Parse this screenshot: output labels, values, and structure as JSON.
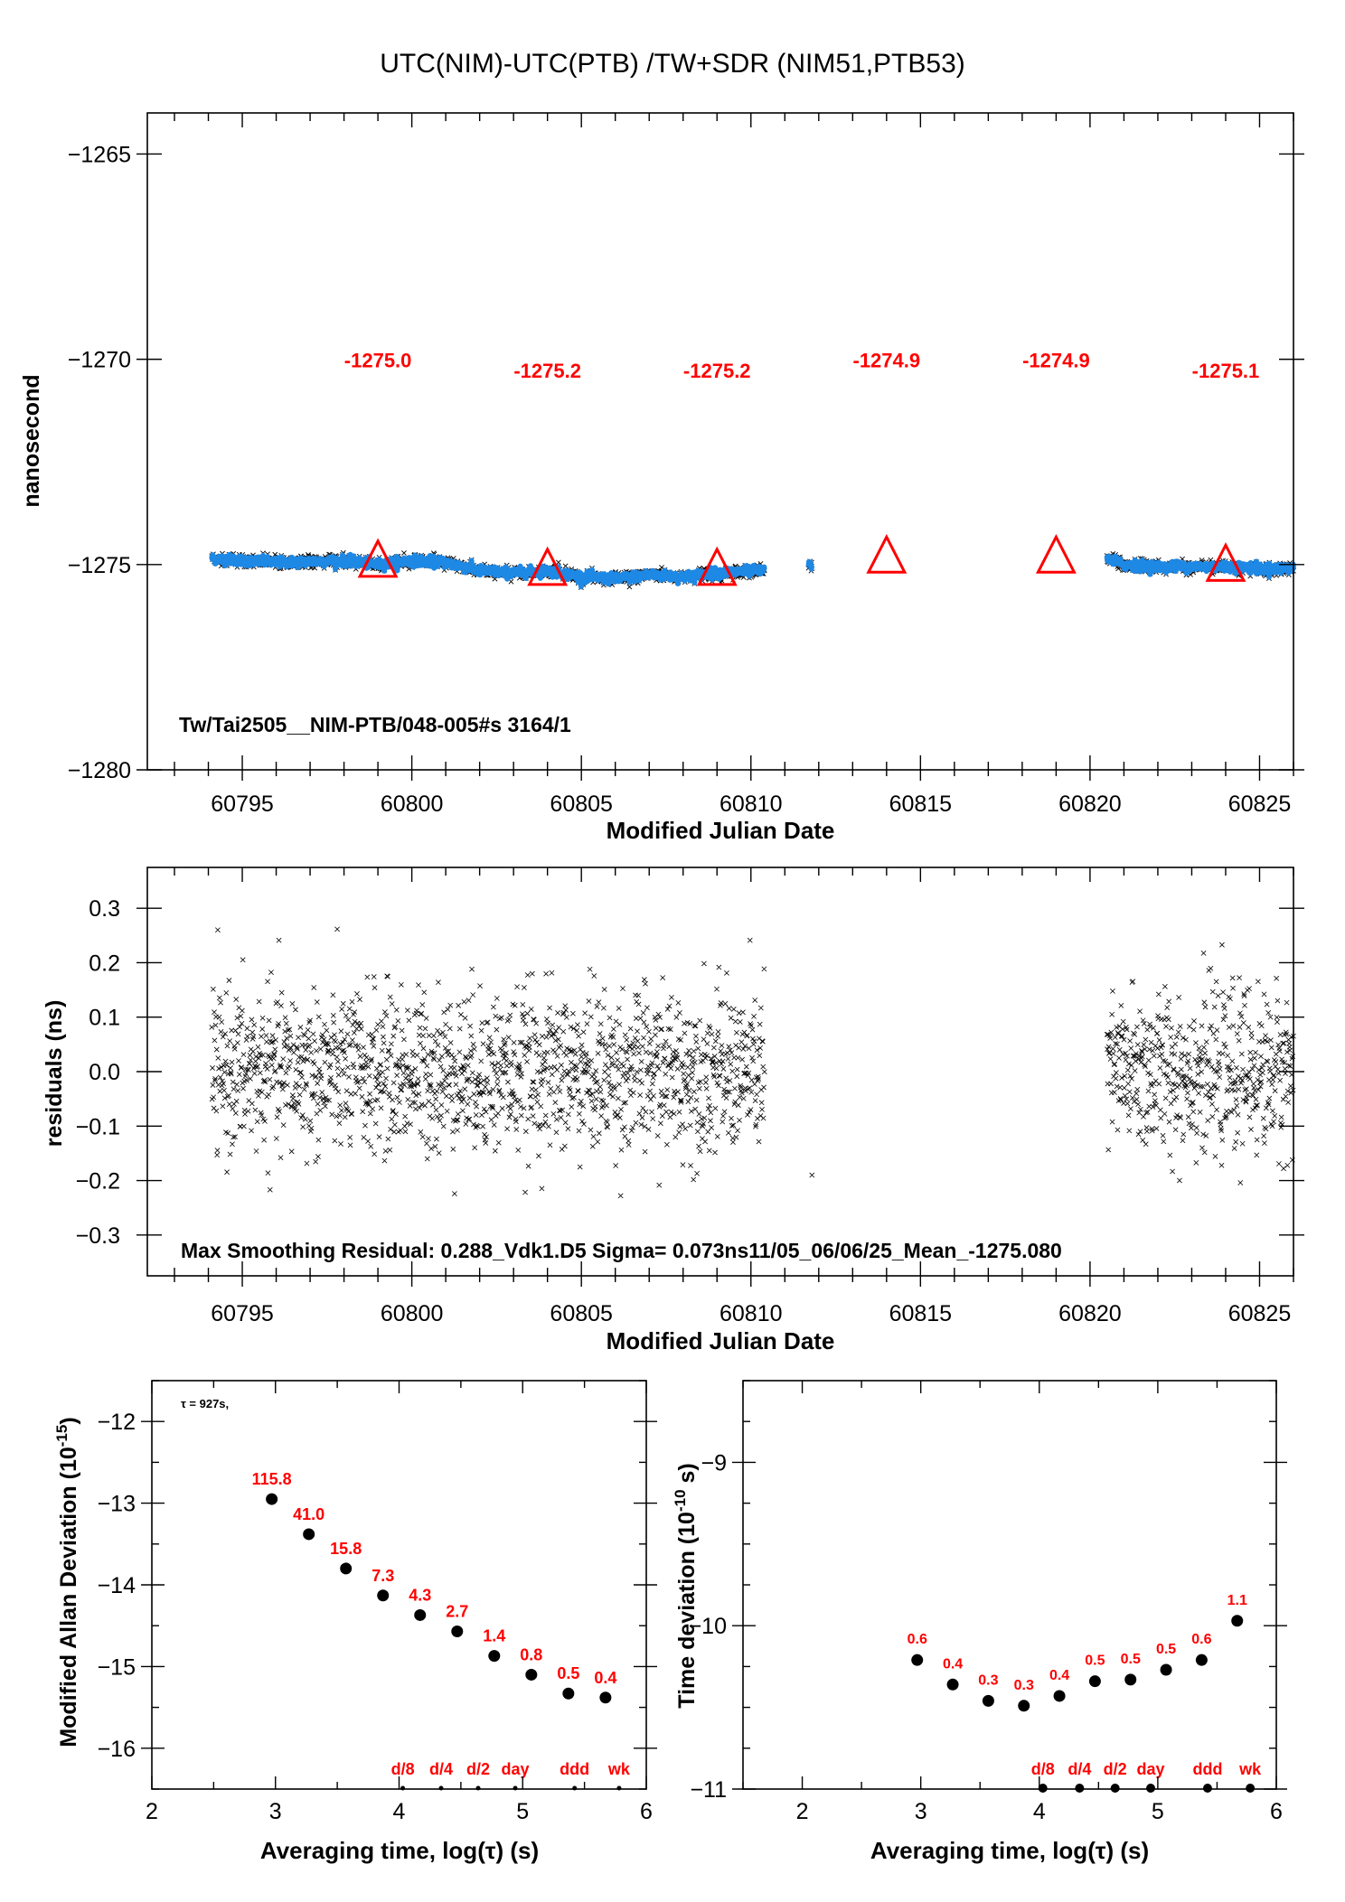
{
  "title": "UTC(NIM)-UTC(PTB)  /TW+SDR  (NIM51,PTB53)",
  "chart_data": [
    {
      "type": "scatter",
      "id": "offset",
      "xlabel": "Modified Julian Date",
      "ylabel": "nanosecond",
      "xlim": [
        60792.2,
        60826
      ],
      "ylim": [
        -1280,
        -1264
      ],
      "xticks": [
        "60795",
        "60800",
        "60805",
        "60810",
        "60815",
        "60820",
        "60825"
      ],
      "yticks": [
        "−1265",
        "−1270",
        "−1275",
        "−1280"
      ],
      "annotation": "Tw/Tai2505__NIM-PTB/048-005#s  3164/1",
      "segments": [
        {
          "x_start": 60794.1,
          "x_end": 60810.4,
          "trend_x": [
            60794.1,
            60796,
            60798,
            60799,
            60800,
            60801,
            60802,
            60803,
            60804,
            60805,
            60806,
            60807,
            60808,
            60809,
            60810.4
          ],
          "trend_y": [
            -1274.85,
            -1274.95,
            -1274.9,
            -1275.0,
            -1274.9,
            -1274.95,
            -1275.15,
            -1275.2,
            -1275.15,
            -1275.3,
            -1275.35,
            -1275.25,
            -1275.3,
            -1275.2,
            -1275.15
          ]
        },
        {
          "x_start": 60811.7,
          "x_end": 60811.8,
          "trend_x": [
            60811.7,
            60811.8
          ],
          "trend_y": [
            -1274.95,
            -1275.05
          ]
        },
        {
          "x_start": 60820.5,
          "x_end": 60826,
          "trend_x": [
            60820.5,
            60821,
            60822,
            60823,
            60824,
            60825,
            60826
          ],
          "trend_y": [
            -1274.85,
            -1275.0,
            -1275.05,
            -1275.05,
            -1275.05,
            -1275.1,
            -1275.1
          ]
        }
      ],
      "markers": [
        {
          "x": 60799,
          "y": -1275.0,
          "label": "-1275.0"
        },
        {
          "x": 60804,
          "y": -1275.2,
          "label": "-1275.2"
        },
        {
          "x": 60809,
          "y": -1275.2,
          "label": "-1275.2"
        },
        {
          "x": 60814,
          "y": -1274.9,
          "label": "-1274.9"
        },
        {
          "x": 60819,
          "y": -1274.9,
          "label": "-1274.9"
        },
        {
          "x": 60824,
          "y": -1275.1,
          "label": "-1275.1"
        }
      ],
      "colors": {
        "data": "#000000",
        "smooth": "#1e88e5",
        "markers": "#ff0000"
      }
    },
    {
      "type": "scatter",
      "id": "residuals",
      "xlabel": "Modified Julian Date",
      "ylabel": "residuals (ns)",
      "xlim": [
        60792.2,
        60826
      ],
      "ylim": [
        -0.375,
        0.375
      ],
      "xticks": [
        "60795",
        "60800",
        "60805",
        "60810",
        "60815",
        "60820",
        "60825"
      ],
      "yticks": [
        "0.3",
        "0.2",
        "0.1",
        "0.0",
        "−0.1",
        "−0.2",
        "−0.3"
      ],
      "annotation": "Max Smoothing Residual: 0.288_Vdk1.D5  Sigma= 0.073ns11/05_06/06/25_Mean_-1275.080",
      "sigma": 0.073,
      "segments": [
        [
          60794.1,
          60810.4
        ],
        [
          60820.5,
          60826
        ]
      ],
      "isolated_points": [
        [
          60811.8,
          -0.19
        ]
      ]
    },
    {
      "type": "scatter",
      "id": "mdev",
      "xlabel": "Averaging time, log(τ) (s)",
      "ylabel": "Modified Allan Deviation (10",
      "ylabel_sup": "-15",
      "ylabel_end": ")",
      "note": "τ = 927s,",
      "xlim": [
        2,
        6
      ],
      "ylim": [
        -16.5,
        -11.5
      ],
      "xticks": [
        "2",
        "3",
        "4",
        "5",
        "6"
      ],
      "yticks": [
        "−12",
        "−13",
        "−14",
        "−15",
        "−16"
      ],
      "x": [
        2.97,
        3.27,
        3.57,
        3.87,
        4.17,
        4.47,
        4.77,
        5.07,
        5.37,
        5.67
      ],
      "y": [
        -12.95,
        -13.38,
        -13.8,
        -14.13,
        -14.37,
        -14.57,
        -14.87,
        -15.1,
        -15.33,
        -15.38
      ],
      "labels": [
        "115.8",
        "41.0",
        "15.8",
        "7.3",
        "4.3",
        "2.7",
        "1.4",
        "0.8",
        "0.5",
        "0.4"
      ],
      "baseline_marks": [
        {
          "x": 4.03,
          "label": "d/8"
        },
        {
          "x": 4.34,
          "label": "d/4"
        },
        {
          "x": 4.64,
          "label": "d/2"
        },
        {
          "x": 4.94,
          "label": "day"
        },
        {
          "x": 5.42,
          "label": "ddd"
        },
        {
          "x": 5.78,
          "label": "wk"
        }
      ]
    },
    {
      "type": "scatter",
      "id": "tdev",
      "xlabel": "Averaging time, log(τ) (s)",
      "ylabel": "Time deviation (10",
      "ylabel_sup": "-10",
      "ylabel_end": " s)",
      "xlim": [
        1.5,
        6
      ],
      "ylim": [
        -11,
        -8.5
      ],
      "xticks": [
        "2",
        "3",
        "4",
        "5",
        "6"
      ],
      "yticks": [
        "−9",
        "−10",
        "−11"
      ],
      "x": [
        2.97,
        3.27,
        3.57,
        3.87,
        4.17,
        4.47,
        4.77,
        5.07,
        5.37,
        5.67
      ],
      "y": [
        -10.21,
        -10.36,
        -10.46,
        -10.49,
        -10.43,
        -10.34,
        -10.33,
        -10.27,
        -10.21,
        -9.97
      ],
      "labels": [
        "0.6",
        "0.4",
        "0.3",
        "0.3",
        "0.4",
        "0.5",
        "0.5",
        "0.5",
        "0.6",
        "1.1"
      ],
      "baseline_marks": [
        {
          "x": 4.03,
          "label": "d/8"
        },
        {
          "x": 4.34,
          "label": "d/4"
        },
        {
          "x": 4.64,
          "label": "d/2"
        },
        {
          "x": 4.94,
          "label": "day"
        },
        {
          "x": 5.42,
          "label": "ddd"
        },
        {
          "x": 5.78,
          "label": "wk"
        }
      ]
    }
  ]
}
